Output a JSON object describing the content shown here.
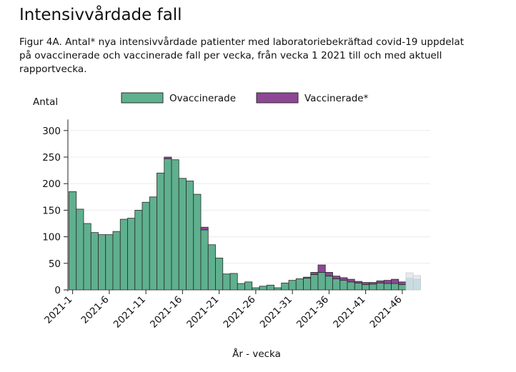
{
  "page": {
    "title": "Intensivvårdade fall",
    "subtitle": "Figur 4A. Antal* nya intensivvårdade patienter med laboratoriebekräftad covid-19 uppdelat på ovaccinerade och vaccinerade fall per vecka, från vecka 1 2021 till och med aktuell rapportvecka."
  },
  "colors": {
    "unvaccinated": "#5fb08f",
    "vaccinated": "#8e4796",
    "unvaccinated_preliminary": "#c9dde0",
    "vaccinated_preliminary": "#e9e9ee",
    "bar_stroke": "#2b2b2b",
    "grid": "#ececec"
  },
  "chart_data": {
    "type": "bar",
    "stacked": true,
    "ylabel": "Antal",
    "xlabel": "År - vecka",
    "ylim": [
      0,
      310
    ],
    "yticks": [
      0,
      50,
      100,
      150,
      200,
      250,
      300
    ],
    "legend": {
      "placement": "top"
    },
    "xtick_labels": [
      "2021-1",
      "2021-6",
      "2021-11",
      "2021-16",
      "2021-21",
      "2021-26",
      "2021-31",
      "2021-36",
      "2021-41",
      "2021-46"
    ],
    "xtick_weeks": [
      1,
      6,
      11,
      16,
      21,
      26,
      31,
      36,
      41,
      46
    ],
    "categories": [
      "2021-1",
      "2021-2",
      "2021-3",
      "2021-4",
      "2021-5",
      "2021-6",
      "2021-7",
      "2021-8",
      "2021-9",
      "2021-10",
      "2021-11",
      "2021-12",
      "2021-13",
      "2021-14",
      "2021-15",
      "2021-16",
      "2021-17",
      "2021-18",
      "2021-19",
      "2021-20",
      "2021-21",
      "2021-22",
      "2021-23",
      "2021-24",
      "2021-25",
      "2021-26",
      "2021-27",
      "2021-28",
      "2021-29",
      "2021-30",
      "2021-31",
      "2021-32",
      "2021-33",
      "2021-34",
      "2021-35",
      "2021-36",
      "2021-37",
      "2021-38",
      "2021-39",
      "2021-40",
      "2021-41",
      "2021-42",
      "2021-43",
      "2021-44",
      "2021-45",
      "2021-46",
      "2021-47",
      "2021-48"
    ],
    "series": [
      {
        "name": "Ovaccinerade",
        "values": [
          185,
          152,
          125,
          108,
          104,
          104,
          110,
          133,
          135,
          150,
          165,
          175,
          220,
          247,
          245,
          210,
          205,
          180,
          113,
          85,
          60,
          30,
          31,
          12,
          15,
          4,
          7,
          9,
          4,
          13,
          18,
          21,
          22,
          29,
          33,
          26,
          21,
          18,
          15,
          13,
          10,
          11,
          13,
          12,
          12,
          10,
          22,
          20
        ]
      },
      {
        "name": "Vaccinerade*",
        "values": [
          0,
          0,
          0,
          0,
          0,
          0,
          0,
          0,
          0,
          0,
          0,
          0,
          0,
          3,
          0,
          0,
          0,
          0,
          5,
          0,
          0,
          0,
          0,
          0,
          0,
          0,
          0,
          0,
          0,
          0,
          0,
          0,
          2,
          4,
          14,
          7,
          5,
          5,
          5,
          3,
          4,
          3,
          4,
          6,
          8,
          5,
          10,
          7
        ]
      }
    ],
    "preliminary_weeks": [
      "2021-47",
      "2021-48"
    ]
  }
}
